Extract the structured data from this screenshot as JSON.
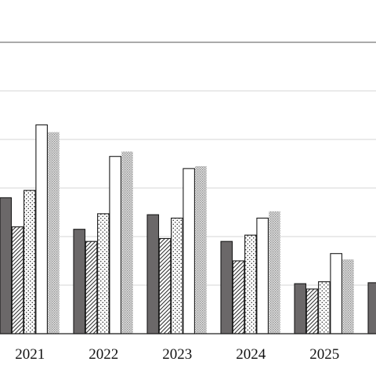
{
  "chart_data": {
    "type": "bar",
    "title": "",
    "xlabel": "",
    "ylabel": "",
    "categories": [
      "2021",
      "2022",
      "2023",
      "2024",
      "2025",
      ""
    ],
    "ylim": [
      0,
      6
    ],
    "grid": true,
    "series": [
      {
        "style": "solid-dark",
        "values": [
          2.8,
          2.15,
          2.45,
          1.9,
          1.03,
          1.05
        ]
      },
      {
        "style": "hatched",
        "values": [
          2.2,
          1.9,
          1.96,
          1.5,
          0.92,
          null
        ]
      },
      {
        "style": "dotted",
        "values": [
          2.95,
          2.47,
          2.38,
          2.03,
          1.07,
          null
        ]
      },
      {
        "style": "white",
        "values": [
          4.3,
          3.65,
          3.4,
          2.38,
          1.65,
          null
        ]
      },
      {
        "style": "fine-dotted",
        "values": [
          4.15,
          3.75,
          3.45,
          2.52,
          1.53,
          null
        ]
      }
    ],
    "colors": {
      "dark": "#6b6869",
      "grid": "#d4d4d4",
      "outline": "#1a1a1a"
    }
  }
}
